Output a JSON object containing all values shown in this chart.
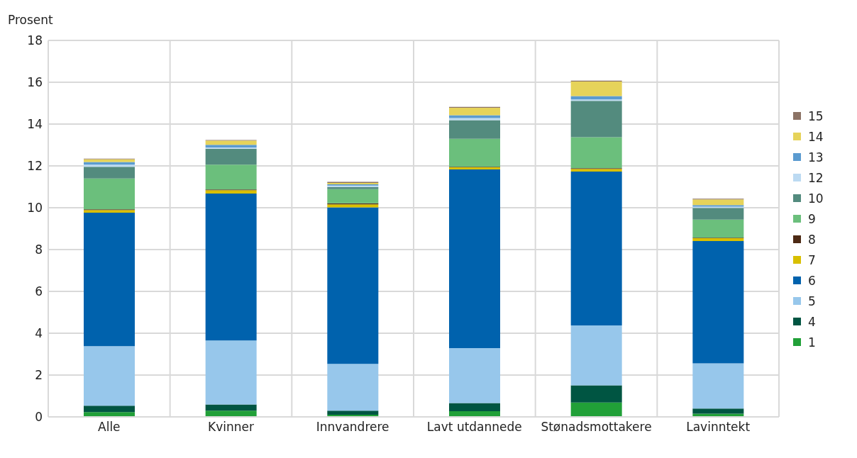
{
  "chart_data": {
    "type": "bar",
    "stacked": true,
    "ylabel": "Prosent",
    "categories": [
      "Alle",
      "Kvinner",
      "Innvandrere",
      "Lavt utdannede",
      "Stønadsmottakere",
      "Lavinntekt"
    ],
    "ylim": [
      0,
      18
    ],
    "yticks": [
      0,
      2,
      4,
      6,
      8,
      10,
      12,
      14,
      16,
      18
    ],
    "grid": true,
    "legend": "right",
    "series": [
      {
        "name": "1",
        "color": "#21a038",
        "values": [
          0.23,
          0.3,
          0.1,
          0.27,
          0.69,
          0.15
        ]
      },
      {
        "name": "4",
        "color": "#005542",
        "values": [
          0.3,
          0.29,
          0.2,
          0.39,
          0.82,
          0.25
        ]
      },
      {
        "name": "5",
        "color": "#97c7eb",
        "values": [
          2.85,
          3.06,
          2.23,
          2.63,
          2.86,
          2.16
        ]
      },
      {
        "name": "6",
        "color": "#0062ad",
        "values": [
          6.38,
          7.03,
          7.49,
          8.54,
          7.36,
          5.85
        ]
      },
      {
        "name": "7",
        "color": "#d8bf00",
        "values": [
          0.13,
          0.16,
          0.14,
          0.1,
          0.13,
          0.13
        ]
      },
      {
        "name": "8",
        "color": "#4d2a15",
        "values": [
          0.03,
          0.03,
          0.05,
          0.03,
          0.03,
          0.03
        ]
      },
      {
        "name": "9",
        "color": "#6bbf7c",
        "values": [
          1.48,
          1.19,
          0.68,
          1.34,
          1.48,
          0.86
        ]
      },
      {
        "name": "10",
        "color": "#538b7e",
        "values": [
          0.56,
          0.76,
          0.1,
          0.89,
          1.74,
          0.56
        ]
      },
      {
        "name": "12",
        "color": "#bcdaf2",
        "values": [
          0.1,
          0.06,
          0.07,
          0.1,
          0.07,
          0.06
        ]
      },
      {
        "name": "13",
        "color": "#5b9bd0",
        "values": [
          0.13,
          0.13,
          0.06,
          0.13,
          0.16,
          0.08
        ]
      },
      {
        "name": "14",
        "color": "#e6d35a",
        "values": [
          0.13,
          0.2,
          0.07,
          0.36,
          0.69,
          0.27
        ]
      },
      {
        "name": "15",
        "color": "#8c7365",
        "values": [
          0.03,
          0.03,
          0.05,
          0.04,
          0.05,
          0.03
        ]
      }
    ]
  }
}
